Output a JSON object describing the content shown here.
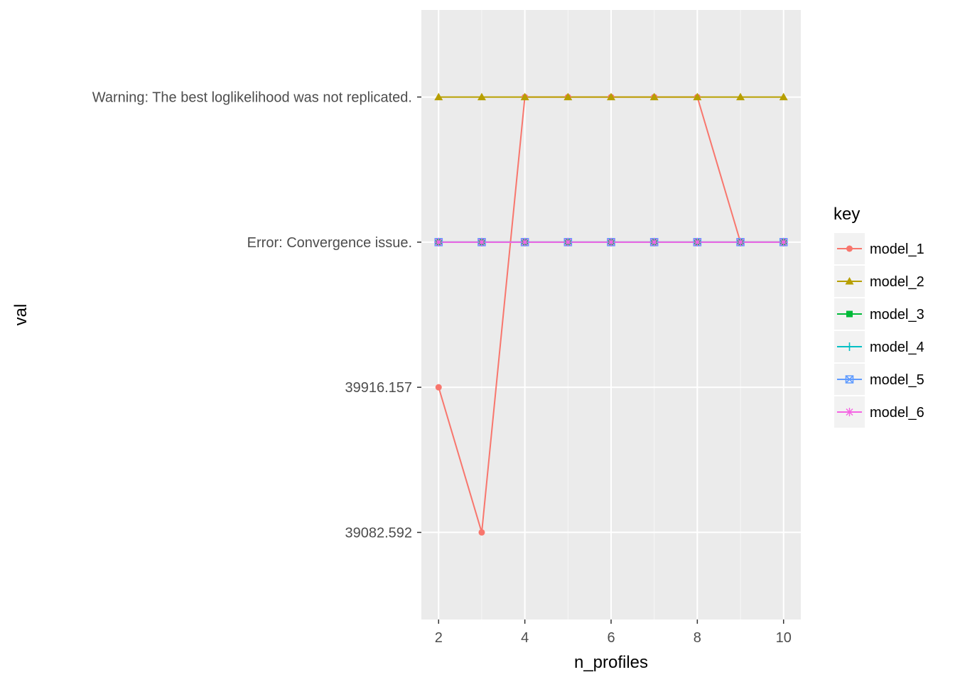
{
  "chart_data": {
    "type": "line",
    "xlabel": "n_profiles",
    "ylabel": "val",
    "x": [
      2,
      3,
      4,
      5,
      6,
      7,
      8,
      9,
      10
    ],
    "xlim": [
      1.6,
      10.4
    ],
    "x_ticks": [
      "2",
      "4",
      "6",
      "8",
      "10"
    ],
    "y_categories": [
      "39082.592",
      "39916.157",
      "Error: Convergence issue.",
      "Warning: The best loglikelihood was not replicated."
    ],
    "grid": true,
    "legend": {
      "title": "key",
      "position": "right"
    },
    "series": [
      {
        "name": "model_1",
        "color": "#F8766D",
        "marker": "circle",
        "values": [
          "39916.157",
          "39082.592",
          "Warning: The best loglikelihood was not replicated.",
          "Warning: The best loglikelihood was not replicated.",
          "Warning: The best loglikelihood was not replicated.",
          "Warning: The best loglikelihood was not replicated.",
          "Warning: The best loglikelihood was not replicated.",
          "Error: Convergence issue.",
          "Error: Convergence issue."
        ]
      },
      {
        "name": "model_2",
        "color": "#B79F00",
        "marker": "triangle",
        "values": [
          "Warning: The best loglikelihood was not replicated.",
          "Warning: The best loglikelihood was not replicated.",
          "Warning: The best loglikelihood was not replicated.",
          "Warning: The best loglikelihood was not replicated.",
          "Warning: The best loglikelihood was not replicated.",
          "Warning: The best loglikelihood was not replicated.",
          "Warning: The best loglikelihood was not replicated.",
          "Warning: The best loglikelihood was not replicated.",
          "Warning: The best loglikelihood was not replicated."
        ]
      },
      {
        "name": "model_3",
        "color": "#00BA38",
        "marker": "square",
        "values": [
          "Error: Convergence issue.",
          "Error: Convergence issue.",
          "Error: Convergence issue.",
          "Error: Convergence issue.",
          "Error: Convergence issue.",
          "Error: Convergence issue.",
          "Error: Convergence issue.",
          "Error: Convergence issue.",
          "Error: Convergence issue."
        ]
      },
      {
        "name": "model_4",
        "color": "#00BFC4",
        "marker": "plus",
        "values": [
          "Error: Convergence issue.",
          "Error: Convergence issue.",
          "Error: Convergence issue.",
          "Error: Convergence issue.",
          "Error: Convergence issue.",
          "Error: Convergence issue.",
          "Error: Convergence issue.",
          "Error: Convergence issue.",
          "Error: Convergence issue."
        ]
      },
      {
        "name": "model_5",
        "color": "#619CFF",
        "marker": "boxx",
        "values": [
          "Error: Convergence issue.",
          "Error: Convergence issue.",
          "Error: Convergence issue.",
          "Error: Convergence issue.",
          "Error: Convergence issue.",
          "Error: Convergence issue.",
          "Error: Convergence issue.",
          "Error: Convergence issue.",
          "Error: Convergence issue."
        ]
      },
      {
        "name": "model_6",
        "color": "#F564E3",
        "marker": "asterisk",
        "values": [
          "Error: Convergence issue.",
          "Error: Convergence issue.",
          "Error: Convergence issue.",
          "Error: Convergence issue.",
          "Error: Convergence issue.",
          "Error: Convergence issue.",
          "Error: Convergence issue.",
          "Error: Convergence issue.",
          "Error: Convergence issue."
        ]
      }
    ]
  }
}
